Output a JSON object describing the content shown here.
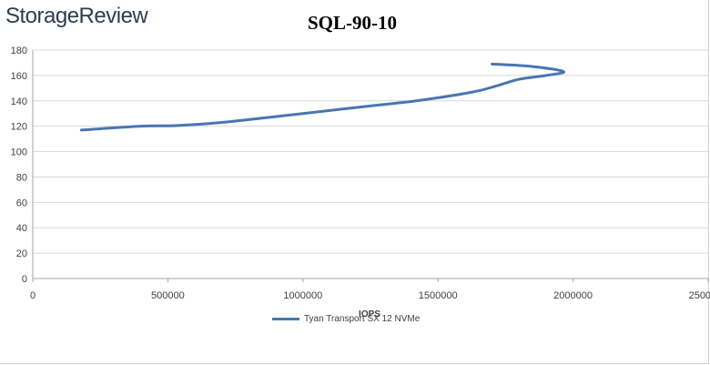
{
  "brand": "StorageReview",
  "chart_data": {
    "type": "line",
    "title": "SQL-90-10",
    "xlabel": "IOPS",
    "ylabel": "",
    "xlim": [
      0,
      2500000
    ],
    "ylim": [
      0,
      180
    ],
    "x_ticks": [
      "0",
      "500000",
      "1000000",
      "1500000",
      "2000000",
      "2500000"
    ],
    "y_ticks": [
      "0",
      "20",
      "40",
      "60",
      "80",
      "100",
      "120",
      "140",
      "160",
      "180"
    ],
    "grid": "horizontal",
    "legend_position": "bottom",
    "series": [
      {
        "name": "Tyan Transport SX 12 NVMe",
        "color": "#4a76b0",
        "points": [
          [
            180000,
            117
          ],
          [
            400000,
            120
          ],
          [
            530000,
            120.5
          ],
          [
            700000,
            123
          ],
          [
            1000000,
            130
          ],
          [
            1250000,
            136
          ],
          [
            1420000,
            140
          ],
          [
            1630000,
            147
          ],
          [
            1720000,
            152
          ],
          [
            1800000,
            157
          ],
          [
            1900000,
            160
          ],
          [
            1965000,
            163
          ],
          [
            1850000,
            167
          ],
          [
            1700000,
            169
          ]
        ]
      }
    ]
  }
}
